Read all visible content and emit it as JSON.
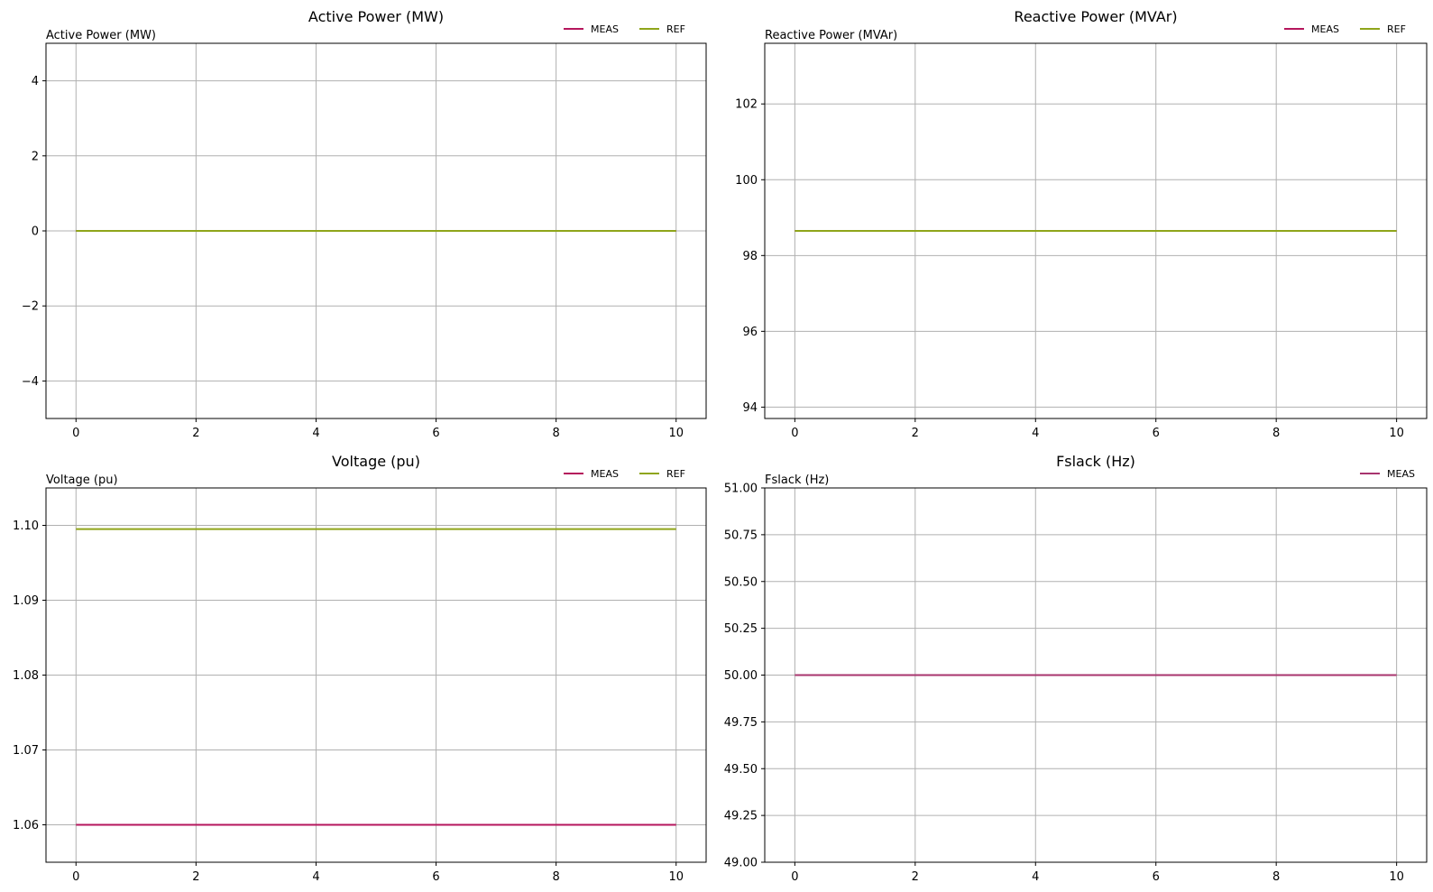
{
  "chart_data": [
    {
      "type": "line",
      "title": "Active Power (MW)",
      "ylabel": "Active Power (MW)",
      "xlabel": "",
      "xlim": [
        -0.5,
        10.5
      ],
      "ylim": [
        -5,
        5
      ],
      "xticks": [
        0,
        2,
        4,
        6,
        8,
        10
      ],
      "xtick_labels": [
        "0",
        "2",
        "4",
        "6",
        "8",
        "10"
      ],
      "yticks": [
        -4,
        -2,
        0,
        2,
        4
      ],
      "ytick_labels": [
        "−4",
        "−2",
        "0",
        "2",
        "4"
      ],
      "grid": true,
      "legend": "top-right",
      "series": [
        {
          "name": "MEAS",
          "color": "#b5165c",
          "x": [
            0,
            10
          ],
          "y": [
            0.0,
            0.0
          ]
        },
        {
          "name": "REF",
          "color": "#8fa51a",
          "x": [
            0,
            10
          ],
          "y": [
            0.0,
            0.0
          ]
        }
      ]
    },
    {
      "type": "line",
      "title": "Reactive Power (MVAr)",
      "ylabel": "Reactive Power (MVAr)",
      "xlabel": "",
      "xlim": [
        -0.5,
        10.5
      ],
      "ylim": [
        93.7,
        103.6
      ],
      "xticks": [
        0,
        2,
        4,
        6,
        8,
        10
      ],
      "xtick_labels": [
        "0",
        "2",
        "4",
        "6",
        "8",
        "10"
      ],
      "yticks": [
        94,
        96,
        98,
        100,
        102
      ],
      "ytick_labels": [
        "94",
        "96",
        "98",
        "100",
        "102"
      ],
      "grid": true,
      "legend": "top-right",
      "series": [
        {
          "name": "MEAS",
          "color": "#b5165c",
          "x": [
            0,
            10
          ],
          "y": [
            98.65,
            98.65
          ]
        },
        {
          "name": "REF",
          "color": "#8fa51a",
          "x": [
            0,
            10
          ],
          "y": [
            98.65,
            98.65
          ]
        }
      ]
    },
    {
      "type": "line",
      "title": "Voltage (pu)",
      "ylabel": "Voltage (pu)",
      "xlabel": "",
      "xlim": [
        -0.5,
        10.5
      ],
      "ylim": [
        1.055,
        1.105
      ],
      "xticks": [
        0,
        2,
        4,
        6,
        8,
        10
      ],
      "xtick_labels": [
        "0",
        "2",
        "4",
        "6",
        "8",
        "10"
      ],
      "yticks": [
        1.06,
        1.07,
        1.08,
        1.09,
        1.1
      ],
      "ytick_labels": [
        "1.06",
        "1.07",
        "1.08",
        "1.09",
        "1.10"
      ],
      "grid": true,
      "legend": "top-right",
      "series": [
        {
          "name": "MEAS",
          "color": "#b5165c",
          "x": [
            0,
            10
          ],
          "y": [
            1.06,
            1.06
          ]
        },
        {
          "name": "REF",
          "color": "#8fa51a",
          "x": [
            0,
            10
          ],
          "y": [
            1.0995,
            1.0995
          ]
        }
      ]
    },
    {
      "type": "line",
      "title": "Fslack (Hz)",
      "ylabel": "Fslack (Hz)",
      "xlabel": "",
      "xlim": [
        -0.5,
        10.5
      ],
      "ylim": [
        49.0,
        51.0
      ],
      "xticks": [
        0,
        2,
        4,
        6,
        8,
        10
      ],
      "xtick_labels": [
        "0",
        "2",
        "4",
        "6",
        "8",
        "10"
      ],
      "yticks": [
        49.0,
        49.25,
        49.5,
        49.75,
        50.0,
        50.25,
        50.5,
        50.75,
        51.0
      ],
      "ytick_labels": [
        "49.00",
        "49.25",
        "49.50",
        "49.75",
        "50.00",
        "50.25",
        "50.50",
        "50.75",
        "51.00"
      ],
      "grid": true,
      "legend": "top-right",
      "series": [
        {
          "name": "MEAS",
          "color": "#a8346e",
          "x": [
            0,
            10
          ],
          "y": [
            50.0,
            50.0
          ]
        }
      ]
    }
  ]
}
